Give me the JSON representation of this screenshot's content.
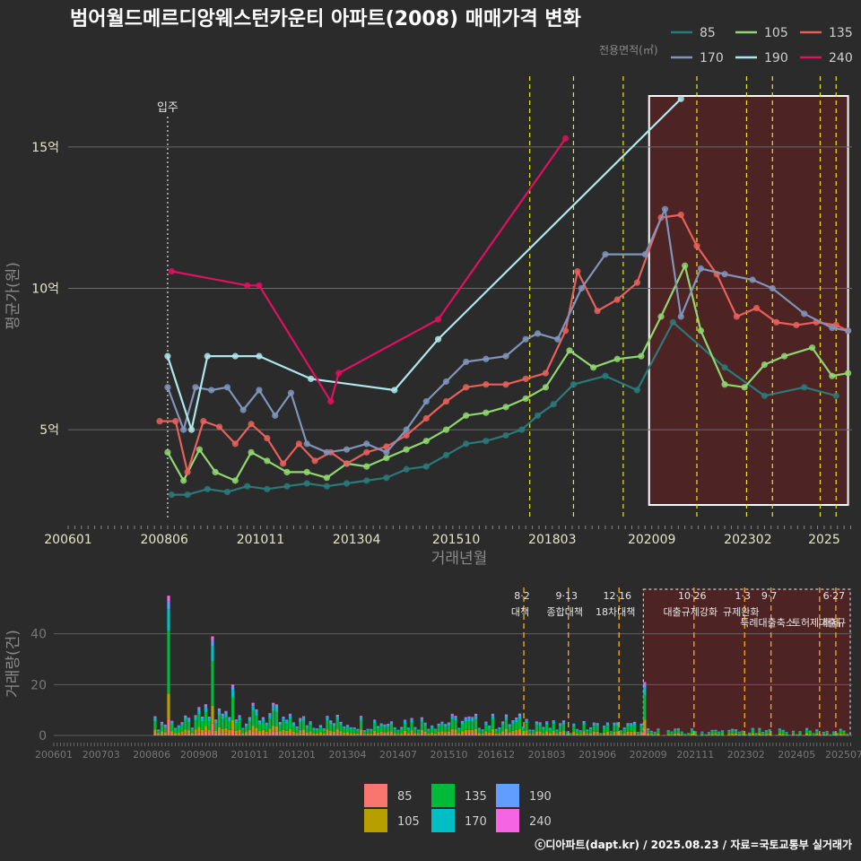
{
  "chart_data": [
    {
      "type": "line",
      "title": "범어월드메르디앙웨스턴카운티 아파트(2008) 매매가격 변화",
      "xlabel": "거래년월",
      "ylabel": "평균가(원)",
      "legend_title": "전용면적(㎡)",
      "x_ticks": [
        "200601",
        "200806",
        "201011",
        "201304",
        "201510",
        "201803",
        "202009",
        "202302",
        "2025"
      ],
      "y_ticks": [
        {
          "v": 5,
          "label": "5억"
        },
        {
          "v": 10,
          "label": "10억"
        },
        {
          "v": 15,
          "label": "15억"
        }
      ],
      "xlim": [
        2006.0,
        2025.7
      ],
      "ylim": [
        1.8,
        17.5
      ],
      "moving_label": "입주",
      "moving_x": 2008.5,
      "policy_lines_x": [
        2017.6,
        2018.7,
        2019.95,
        2021.8,
        2023.05,
        2023.7,
        2024.9,
        2025.3
      ],
      "highlight_x": [
        2020.6,
        2025.6
      ],
      "series": [
        {
          "name": "85",
          "color": "#2a7a7a",
          "x": [
            2008.6,
            2009.0,
            2009.5,
            2010.0,
            2010.5,
            2011.0,
            2011.5,
            2012.0,
            2012.5,
            2013.0,
            2013.5,
            2014.0,
            2014.5,
            2015.0,
            2015.5,
            2016.0,
            2016.5,
            2017.0,
            2017.4,
            2017.8,
            2018.2,
            2018.7,
            2019.5,
            2020.3,
            2021.2,
            2022.5,
            2023.5,
            2024.5,
            2025.3
          ],
          "y": [
            2.7,
            2.7,
            2.9,
            2.8,
            3.0,
            2.9,
            3.0,
            3.1,
            3.0,
            3.1,
            3.2,
            3.3,
            3.6,
            3.7,
            4.1,
            4.5,
            4.6,
            4.8,
            5.0,
            5.5,
            5.9,
            6.6,
            6.9,
            6.4,
            8.8,
            7.2,
            6.2,
            6.5,
            6.2
          ]
        },
        {
          "name": "105",
          "color": "#8fd870",
          "x": [
            2008.5,
            2008.9,
            2009.3,
            2009.7,
            2010.2,
            2010.6,
            2011.0,
            2011.5,
            2012.0,
            2012.5,
            2013.0,
            2013.5,
            2014.0,
            2014.5,
            2015.0,
            2015.5,
            2016.0,
            2016.5,
            2017.0,
            2017.5,
            2018.0,
            2018.6,
            2019.2,
            2019.8,
            2020.4,
            2020.9,
            2021.5,
            2021.9,
            2022.5,
            2023.0,
            2023.5,
            2024.0,
            2024.7,
            2025.2,
            2025.6
          ],
          "y": [
            4.2,
            3.2,
            4.3,
            3.5,
            3.2,
            4.2,
            3.9,
            3.5,
            3.5,
            3.3,
            3.8,
            3.7,
            4.0,
            4.3,
            4.6,
            5.0,
            5.5,
            5.6,
            5.8,
            6.1,
            6.5,
            7.8,
            7.2,
            7.5,
            7.6,
            9.0,
            10.8,
            8.5,
            6.6,
            6.5,
            7.3,
            7.6,
            7.9,
            6.9,
            7.0
          ]
        },
        {
          "name": "135",
          "color": "#e9605a",
          "x": [
            2008.3,
            2008.7,
            2009.0,
            2009.4,
            2009.8,
            2010.2,
            2010.6,
            2011.0,
            2011.4,
            2011.8,
            2012.2,
            2012.6,
            2013.0,
            2013.5,
            2014.0,
            2014.5,
            2015.0,
            2015.5,
            2016.0,
            2016.5,
            2017.0,
            2017.5,
            2018.0,
            2018.5,
            2018.8,
            2019.3,
            2019.8,
            2020.3,
            2020.9,
            2021.4,
            2021.8,
            2022.3,
            2022.8,
            2023.3,
            2023.8,
            2024.3,
            2024.8,
            2025.3,
            2025.6
          ],
          "y": [
            5.3,
            5.3,
            3.5,
            5.3,
            5.1,
            4.5,
            5.2,
            4.7,
            3.8,
            4.5,
            3.9,
            4.2,
            3.8,
            4.2,
            4.4,
            4.8,
            5.4,
            6.0,
            6.5,
            6.6,
            6.6,
            6.8,
            7.0,
            8.5,
            10.6,
            9.2,
            9.6,
            10.2,
            12.5,
            12.6,
            11.5,
            10.5,
            9.0,
            9.3,
            8.8,
            8.7,
            8.8,
            8.7,
            8.5
          ]
        },
        {
          "name": "170",
          "color": "#7f95bb",
          "x": [
            2008.5,
            2008.9,
            2009.2,
            2009.6,
            2010.0,
            2010.4,
            2010.8,
            2011.2,
            2011.6,
            2012.0,
            2012.5,
            2013.0,
            2013.5,
            2014.0,
            2014.5,
            2015.0,
            2015.5,
            2016.0,
            2016.5,
            2017.0,
            2017.5,
            2017.8,
            2018.3,
            2018.9,
            2019.5,
            2020.5,
            2021.0,
            2021.4,
            2021.9,
            2022.5,
            2023.2,
            2023.7,
            2024.5,
            2025.2,
            2025.6
          ],
          "y": [
            6.5,
            5.0,
            6.5,
            6.4,
            6.5,
            5.7,
            6.4,
            5.5,
            6.3,
            4.5,
            4.2,
            4.3,
            4.5,
            4.2,
            5.0,
            6.0,
            6.7,
            7.4,
            7.5,
            7.6,
            8.2,
            8.4,
            8.2,
            10.0,
            11.2,
            11.2,
            12.8,
            9.0,
            10.7,
            10.5,
            10.3,
            10.0,
            9.1,
            8.6,
            8.5
          ]
        },
        {
          "name": "190",
          "color": "#aee8ec",
          "x": [
            2008.5,
            2009.1,
            2009.5,
            2010.2,
            2010.8,
            2012.1,
            2014.2,
            2015.3,
            2021.4
          ],
          "y": [
            7.6,
            5.0,
            7.6,
            7.6,
            7.6,
            6.8,
            6.4,
            8.2,
            16.7
          ]
        },
        {
          "name": "240",
          "color": "#e0115e",
          "x": [
            2008.6,
            2010.5,
            2010.8,
            2012.6,
            2012.8,
            2015.3,
            2018.5
          ],
          "y": [
            10.6,
            10.1,
            10.1,
            6.0,
            7.0,
            8.9,
            15.3
          ]
        }
      ]
    },
    {
      "type": "bar",
      "ylabel": "거래량(건)",
      "stacked": true,
      "x_ticks": [
        "200601",
        "200703",
        "200806",
        "200908",
        "201011",
        "201201",
        "201304",
        "201407",
        "201510",
        "201612",
        "201803",
        "201906",
        "202009",
        "202111",
        "202302",
        "202405",
        "202507"
      ],
      "y_ticks": [
        {
          "v": 0,
          "label": "0"
        },
        {
          "v": 20,
          "label": "20"
        },
        {
          "v": 40,
          "label": "40"
        }
      ],
      "ylim": [
        0,
        60
      ],
      "legend": [
        {
          "name": "85",
          "color": "#f8766d"
        },
        {
          "name": "105",
          "color": "#b79f00"
        },
        {
          "name": "135",
          "color": "#00ba38"
        },
        {
          "name": "170",
          "color": "#00bfc4"
        },
        {
          "name": "190",
          "color": "#619cff"
        },
        {
          "name": "240",
          "color": "#f564e3"
        }
      ],
      "annotations": [
        {
          "date": "8·2",
          "text": "대책",
          "x": 2017.6
        },
        {
          "date": "9·13",
          "text": "종합대책",
          "x": 2018.7
        },
        {
          "date": "12·16",
          "text": "18차대책",
          "x": 2019.95
        },
        {
          "date": "10·26",
          "text": "대출규제강화",
          "x": 2021.8
        },
        {
          "date": "1·3",
          "text": "규제완화",
          "x": 2023.05
        },
        {
          "date": "9·7",
          "text": "특례대출축소",
          "x": 2023.7
        },
        {
          "date": "",
          "text": "토허제 해제",
          "x": 2024.9
        },
        {
          "date": "6·27",
          "text": "대출규",
          "x": 2025.3
        }
      ],
      "peaks": [
        {
          "x": 2008.8,
          "v": 55
        },
        {
          "x": 2009.9,
          "v": 39
        },
        {
          "x": 2010.4,
          "v": 20
        },
        {
          "x": 2020.6,
          "v": 21
        }
      ]
    }
  ],
  "credit": "ⓒ디아파트(dapt.kr) / 2025.08.23 / 자료=국토교통부 실거래가"
}
